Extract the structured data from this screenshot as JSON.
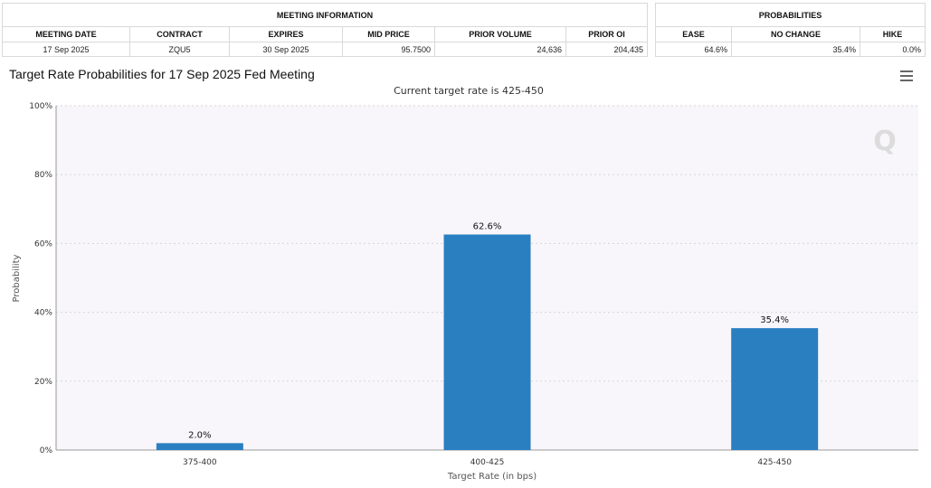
{
  "meeting_info": {
    "title": "MEETING INFORMATION",
    "headers": [
      "MEETING DATE",
      "CONTRACT",
      "EXPIRES",
      "MID PRICE",
      "PRIOR VOLUME",
      "PRIOR OI"
    ],
    "row": [
      "17 Sep 2025",
      "ZQU5",
      "30 Sep 2025",
      "95.7500",
      "24,636",
      "204,435"
    ]
  },
  "probabilities": {
    "title": "PROBABILITIES",
    "headers": [
      "EASE",
      "NO CHANGE",
      "HIKE"
    ],
    "row": [
      "64.6%",
      "35.4%",
      "0.0%"
    ]
  },
  "chart": {
    "title": "Target Rate Probabilities for 17 Sep 2025 Fed Meeting",
    "subtitle": "Current target rate is 425-450"
  },
  "chart_data": {
    "type": "bar",
    "categories": [
      "375-400",
      "400-425",
      "425-450"
    ],
    "values": [
      2.0,
      62.6,
      35.4
    ],
    "data_labels": [
      "2.0%",
      "62.6%",
      "35.4%"
    ],
    "title": "Target Rate Probabilities for 17 Sep 2025 Fed Meeting",
    "subtitle": "Current target rate is 425-450",
    "xlabel": "Target Rate (in bps)",
    "ylabel": "Probability",
    "ylim": [
      0,
      100
    ],
    "yticks": [
      "0%",
      "20%",
      "40%",
      "60%",
      "80%",
      "100%"
    ],
    "grid": true,
    "bar_color": "#2a7fc1",
    "plot_bg": "#f8f6fa"
  }
}
